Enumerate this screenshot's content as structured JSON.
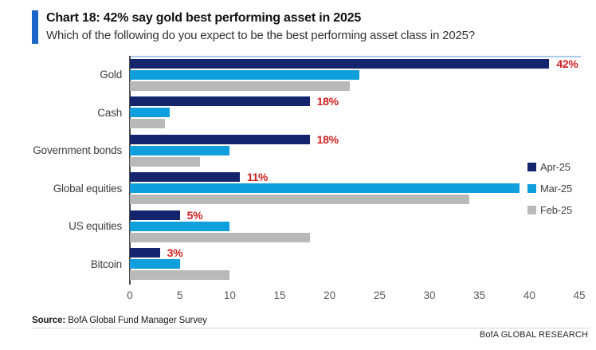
{
  "header": {
    "title": "Chart 18: 42% say gold best performing asset in 2025",
    "subtitle": "Which of the following do you expect to be the best performing asset class in 2025?"
  },
  "chart_data": {
    "type": "bar",
    "orientation": "horizontal",
    "title": "Chart 18: 42% say gold best performing asset in 2025",
    "subtitle": "Which of the following do you expect to be the best performing asset class in 2025?",
    "categories": [
      "Gold",
      "Cash",
      "Government bonds",
      "Global equities",
      "US equities",
      "Bitcoin"
    ],
    "series": [
      {
        "name": "Apr-25",
        "color": "#15256d",
        "values": [
          42,
          18,
          18,
          11,
          5,
          3
        ]
      },
      {
        "name": "Mar-25",
        "color": "#109fdd",
        "values": [
          23,
          4,
          10,
          39,
          10,
          5
        ]
      },
      {
        "name": "Feb-25",
        "color": "#b9b9b9",
        "values": [
          22,
          3.5,
          7,
          34,
          18,
          10
        ]
      }
    ],
    "data_labels": {
      "on_series": "Apr-25",
      "values": [
        "42%",
        "18%",
        "18%",
        "11%",
        "5%",
        "3%"
      ],
      "color": "#d22020"
    },
    "x_ticks": [
      "0",
      "5",
      "10",
      "15",
      "20",
      "25",
      "30",
      "35",
      "40",
      "45"
    ],
    "xlim": [
      0,
      45
    ],
    "grid": false,
    "legend_position": "inside-right-bottom"
  },
  "footer": {
    "source_label": "Source:",
    "source_text": " BofA Global Fund Manager Survey",
    "brand": "BofA GLOBAL RESEARCH"
  },
  "colors": {
    "accent": "#1b66c9",
    "navy": "#15256d",
    "cyan": "#109fdd",
    "gray": "#b9b9b9",
    "label_red": "#d22020",
    "axis": "#4d4d4d",
    "plot_top_border": "#a9cbe9"
  }
}
